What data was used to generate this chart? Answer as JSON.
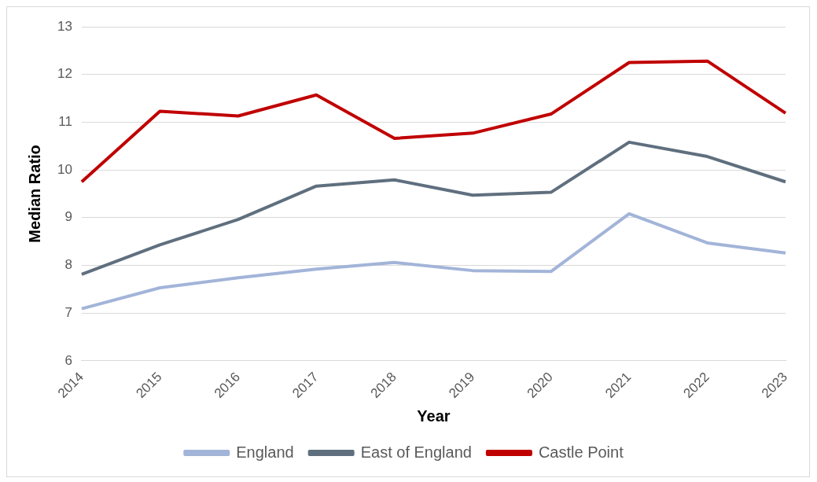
{
  "chart_data": {
    "type": "line",
    "xlabel": "Year",
    "ylabel": "Median Ratio",
    "categories": [
      "2014",
      "2015",
      "2016",
      "2017",
      "2018",
      "2019",
      "2020",
      "2021",
      "2022",
      "2023"
    ],
    "series": [
      {
        "name": "England",
        "color": "#a2b4d8",
        "values": [
          7.09,
          7.53,
          7.74,
          7.92,
          8.06,
          7.89,
          7.87,
          9.08,
          8.47,
          8.26
        ]
      },
      {
        "name": "East of England",
        "color": "#5f6f7e",
        "values": [
          7.81,
          8.43,
          8.96,
          9.66,
          9.79,
          9.47,
          9.53,
          10.58,
          10.28,
          9.75
        ]
      },
      {
        "name": "Castle Point",
        "color": "#c00000",
        "values": [
          9.75,
          11.23,
          11.13,
          11.57,
          10.66,
          10.77,
          11.17,
          12.25,
          12.28,
          11.19
        ]
      }
    ],
    "ylim": [
      6,
      13
    ],
    "yticks": [
      6,
      7,
      8,
      9,
      10,
      11,
      12,
      13
    ],
    "grid": "y",
    "legend": "bottom",
    "marker": "none",
    "line_style": "solid"
  }
}
